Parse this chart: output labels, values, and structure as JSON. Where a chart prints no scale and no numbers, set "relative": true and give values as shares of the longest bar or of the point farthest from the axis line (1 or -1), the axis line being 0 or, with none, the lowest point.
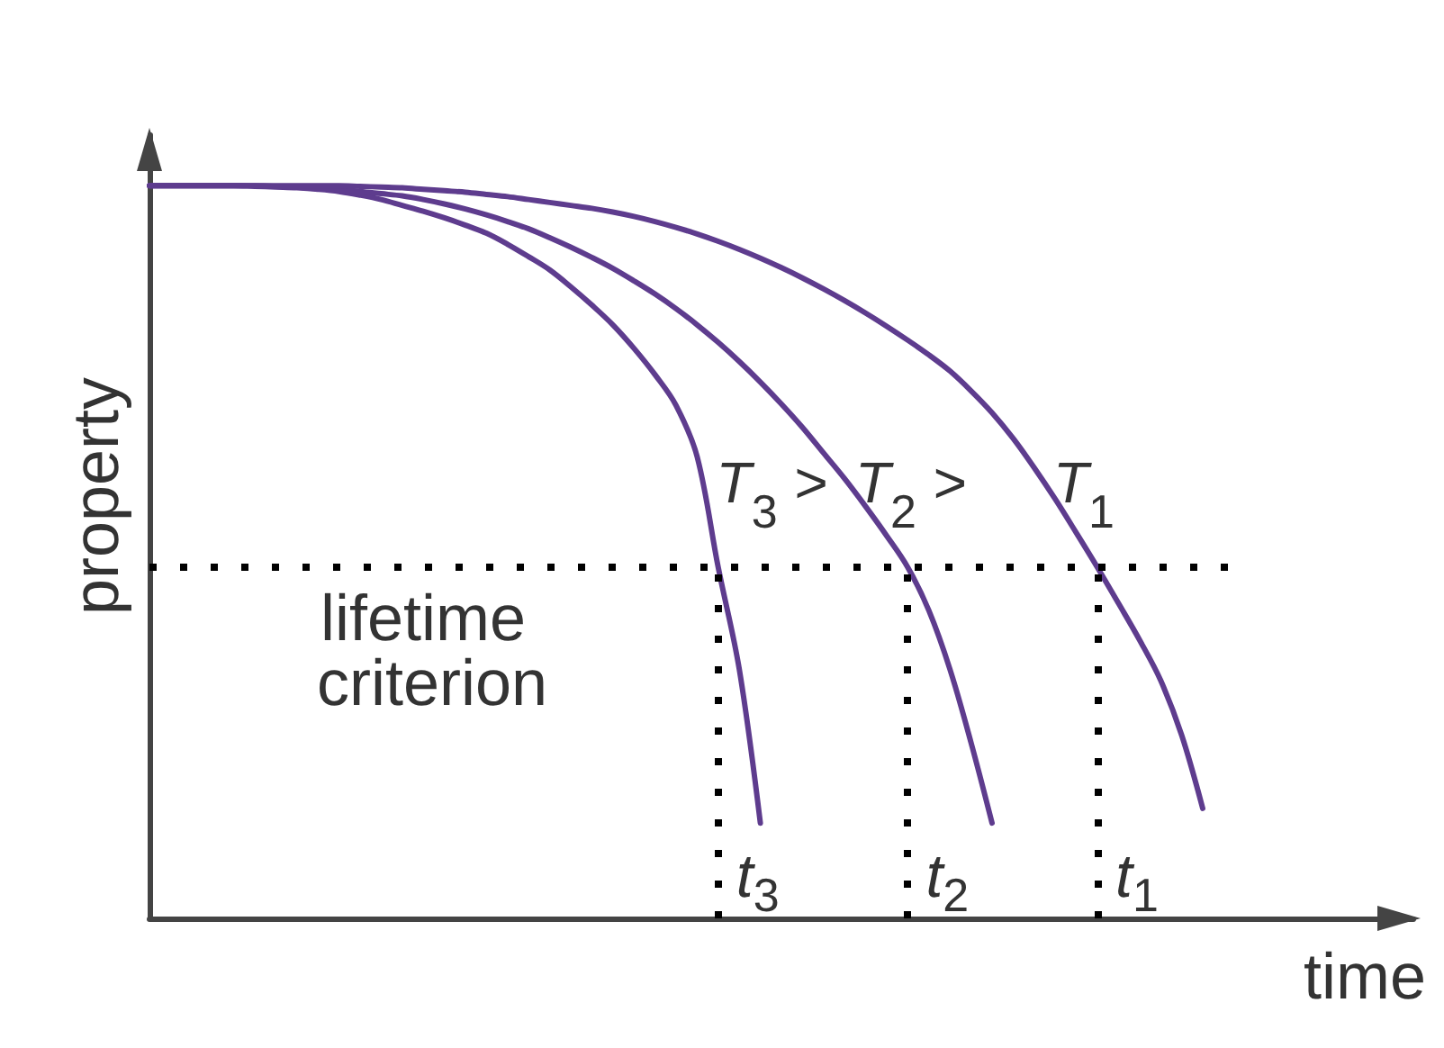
{
  "chart_data": {
    "type": "line",
    "relative": true,
    "xlabel": "time",
    "ylabel": "property",
    "categories": [
      null,
      null,
      null,
      null,
      null,
      null,
      null,
      null,
      null,
      null,
      null,
      null,
      null,
      null,
      null,
      null,
      null,
      null,
      null,
      null,
      null,
      null,
      null,
      null,
      null,
      null,
      null,
      null,
      null,
      null,
      null,
      null,
      null,
      null,
      null,
      null,
      null,
      null,
      null,
      null,
      null,
      null,
      null,
      null,
      null,
      null,
      null,
      null,
      null,
      null,
      null,
      null,
      null,
      null,
      null,
      null,
      null,
      null,
      null,
      null,
      null
    ],
    "series": [
      {
        "name": "T$_{3}$ >",
        "color": "#5e3c8e",
        "values": [
          1,
          1,
          1,
          1,
          1,
          0.999,
          0.998,
          0.997,
          0.995,
          0.992,
          0.987,
          0.981,
          0.973,
          0.965,
          0.956,
          0.946,
          0.935,
          0.92,
          0.903,
          0.885,
          0.862,
          0.837,
          0.81,
          0.778,
          0.742,
          0.7,
          0.63,
          0.479,
          0.34,
          0.13,
          null,
          null,
          null,
          null,
          null,
          null,
          null,
          null,
          null,
          null,
          null,
          null,
          null,
          null,
          null,
          null,
          null,
          null,
          null,
          null,
          null,
          null,
          null,
          null,
          null,
          null,
          null,
          null,
          null,
          null,
          null
        ]
      },
      {
        "name": "T$_{2}$ >",
        "color": "#5e3c8e",
        "values": [
          1,
          1,
          1,
          1,
          1,
          1,
          0.999,
          0.998,
          0.996,
          0.994,
          0.992,
          0.989,
          0.986,
          0.981,
          0.975,
          0.968,
          0.96,
          0.951,
          0.941,
          0.929,
          0.916,
          0.902,
          0.887,
          0.87,
          0.852,
          0.832,
          0.81,
          0.786,
          0.76,
          0.732,
          0.702,
          0.67,
          0.635,
          0.6,
          0.562,
          0.522,
          0.479,
          0.42,
          0.34,
          0.24,
          0.13,
          null,
          null,
          null,
          null,
          null,
          null,
          null,
          null,
          null,
          null,
          null,
          null,
          null,
          null,
          null,
          null,
          null,
          null,
          null,
          null
        ]
      },
      {
        "name": "T$_{1}$",
        "color": "#5e3c8e",
        "values": [
          1,
          1,
          1,
          1,
          1,
          1,
          1,
          1,
          1,
          1,
          0.999,
          0.998,
          0.997,
          0.995,
          0.993,
          0.991,
          0.988,
          0.985,
          0.981,
          0.977,
          0.973,
          0.969,
          0.964,
          0.958,
          0.951,
          0.943,
          0.934,
          0.924,
          0.913,
          0.901,
          0.888,
          0.874,
          0.859,
          0.843,
          0.826,
          0.808,
          0.789,
          0.769,
          0.747,
          0.72,
          0.69,
          0.655,
          0.615,
          0.572,
          0.526,
          0.479,
          0.43,
          0.38,
          0.325,
          0.25,
          0.15,
          null,
          null,
          null,
          null,
          null,
          null,
          null,
          null,
          null,
          null
        ]
      }
    ],
    "ref_lines": [
      {
        "axis": "y",
        "value": 0.479,
        "label": "lifetime criterion",
        "color": "#000000",
        "line_style": "dotted"
      }
    ],
    "annotations": [
      "t$_{3}$",
      "t$_{2}$",
      "t$_{1}$"
    ],
    "grid": false,
    "legend": false,
    "line_style": "solid"
  }
}
